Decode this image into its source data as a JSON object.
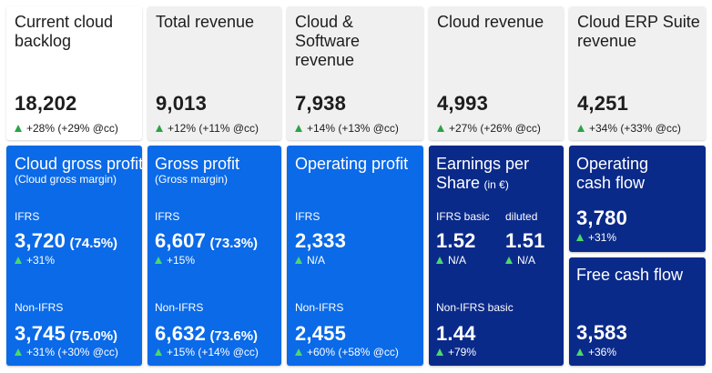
{
  "top_cards": [
    {
      "title": "Current cloud backlog",
      "value": "18,202",
      "change": "+28% (+29% @cc)"
    },
    {
      "title": "Total revenue",
      "value": "9,013",
      "change": "+12% (+11% @cc)"
    },
    {
      "title": "Cloud & Software revenue",
      "value": "7,938",
      "change": "+14% (+13% @cc)"
    },
    {
      "title": "Cloud revenue",
      "value": "4,993",
      "change": "+27% (+26% @cc)"
    },
    {
      "title": "Cloud ERP Suite revenue",
      "value": "4,251",
      "change": "+34% (+33% @cc)"
    }
  ],
  "cloud_gross_profit": {
    "title": "Cloud gross profit",
    "subtitle": "(Cloud gross margin)",
    "ifrs_label": "IFRS",
    "ifrs_value": "3,720",
    "ifrs_margin": "(74.5%)",
    "ifrs_change": "+31%",
    "nonifrs_label": "Non-IFRS",
    "nonifrs_value": "3,745",
    "nonifrs_margin": "(75.0%)",
    "nonifrs_change": "+31% (+30% @cc)"
  },
  "gross_profit": {
    "title": "Gross profit",
    "subtitle": "(Gross margin)",
    "ifrs_label": "IFRS",
    "ifrs_value": "6,607",
    "ifrs_margin": "(73.3%)",
    "ifrs_change": "+15%",
    "nonifrs_label": "Non-IFRS",
    "nonifrs_value": "6,632",
    "nonifrs_margin": "(73.6%)",
    "nonifrs_change": "+15% (+14% @cc)"
  },
  "operating_profit": {
    "title": "Operating profit",
    "ifrs_label": "IFRS",
    "ifrs_value": "2,333",
    "ifrs_change": "N/A",
    "nonifrs_label": "Non-IFRS",
    "nonifrs_value": "2,455",
    "nonifrs_change": "+60% (+58% @cc)"
  },
  "eps": {
    "title_line1": "Earnings per",
    "title_line2": "Share",
    "unit": "(in €)",
    "basic_label": "IFRS basic",
    "basic_value": "1.52",
    "basic_change": "N/A",
    "diluted_label": "diluted",
    "diluted_value": "1.51",
    "diluted_change": "N/A",
    "nonifrs_label": "Non-IFRS basic",
    "nonifrs_value": "1.44",
    "nonifrs_change": "+79%"
  },
  "operating_cash_flow": {
    "title_line1": "Operating",
    "title_line2": "cash flow",
    "value": "3,780",
    "change": "+31%"
  },
  "free_cash_flow": {
    "title": "Free cash flow",
    "value": "3,583",
    "change": "+36%"
  },
  "colors": {
    "blue": "#0a6ae8",
    "navy": "#0a2a8a",
    "top_bg": "#f0f0f0",
    "up_green": "#27a545"
  }
}
